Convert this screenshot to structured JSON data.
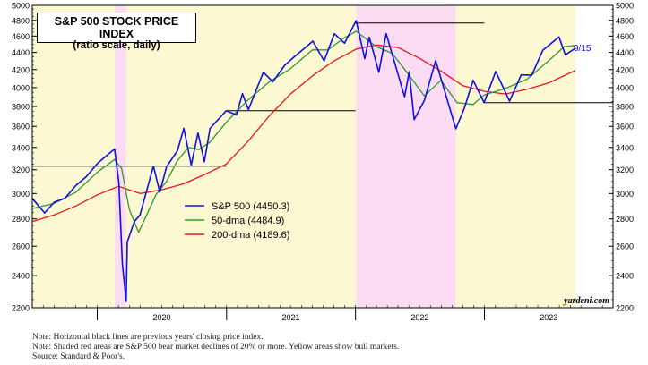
{
  "chart_data": {
    "type": "line",
    "title": "S&P 500 STOCK PRICE INDEX",
    "subtitle": "(ratio scale, daily)",
    "scale": "log",
    "ylim": [
      2200,
      5000
    ],
    "y_ticks": [
      2200,
      2400,
      2600,
      2800,
      3000,
      3200,
      3400,
      3600,
      3800,
      4000,
      4200,
      4400,
      4600,
      4800,
      5000
    ],
    "x_ticks": [
      "2020",
      "2021",
      "2022",
      "2023"
    ],
    "xlim": [
      "2019-07-01",
      "2023-12-31"
    ],
    "latest_label": "9/15",
    "watermark": "yardeni.com",
    "legend": {
      "placement": "center-left",
      "entries": [
        {
          "label": "S&P 500 (4450.3)",
          "color": "#1010e0"
        },
        {
          "label": "50-dma (4484.9)",
          "color": "#2f9a2f"
        },
        {
          "label": "200-dma (4189.6)",
          "color": "#e8151b"
        }
      ]
    },
    "shaded_periods": [
      {
        "kind": "bull",
        "start": "2019-07-01",
        "end": "2020-02-19",
        "color": "#fbf8d2"
      },
      {
        "kind": "bear",
        "start": "2020-02-19",
        "end": "2020-03-23",
        "color": "#fbdcf3"
      },
      {
        "kind": "bull",
        "start": "2020-03-23",
        "end": "2022-01-03",
        "color": "#fbf8d2"
      },
      {
        "kind": "bear",
        "start": "2022-01-03",
        "end": "2022-10-12",
        "color": "#fbdcf3"
      },
      {
        "kind": "bull",
        "start": "2022-10-12",
        "end": "2023-09-15",
        "color": "#fbf8d2"
      }
    ],
    "reference_lines": [
      {
        "label": "2019 close",
        "value": 3231,
        "start": "2019-07-01",
        "end": "2021-01-01"
      },
      {
        "label": "2020 close",
        "value": 3756,
        "start": "2021-01-01",
        "end": "2022-01-01"
      },
      {
        "label": "2021 close",
        "value": 4766,
        "start": "2022-01-01",
        "end": "2023-01-01"
      },
      {
        "label": "2022 close",
        "value": 3839,
        "start": "2023-01-01",
        "end": "2023-12-31"
      }
    ],
    "series": [
      {
        "name": "S&P 500 (4450.3)",
        "color": "#1010e0",
        "points": [
          [
            "2019-07-01",
            2960
          ],
          [
            "2019-08-05",
            2845
          ],
          [
            "2019-09-01",
            2930
          ],
          [
            "2019-10-01",
            2960
          ],
          [
            "2019-11-01",
            3065
          ],
          [
            "2019-12-01",
            3140
          ],
          [
            "2020-01-02",
            3257
          ],
          [
            "2020-02-19",
            3386
          ],
          [
            "2020-03-02",
            3090
          ],
          [
            "2020-03-12",
            2480
          ],
          [
            "2020-03-16",
            2386
          ],
          [
            "2020-03-23",
            2237
          ],
          [
            "2020-03-26",
            2630
          ],
          [
            "2020-04-15",
            2780
          ],
          [
            "2020-05-01",
            2830
          ],
          [
            "2020-06-08",
            3232
          ],
          [
            "2020-06-26",
            3010
          ],
          [
            "2020-07-15",
            3225
          ],
          [
            "2020-08-15",
            3370
          ],
          [
            "2020-09-02",
            3580
          ],
          [
            "2020-09-23",
            3240
          ],
          [
            "2020-10-12",
            3535
          ],
          [
            "2020-10-30",
            3270
          ],
          [
            "2020-11-15",
            3580
          ],
          [
            "2020-12-31",
            3756
          ],
          [
            "2021-01-29",
            3714
          ],
          [
            "2021-02-15",
            3934
          ],
          [
            "2021-03-04",
            3768
          ],
          [
            "2021-04-15",
            4170
          ],
          [
            "2021-05-12",
            4063
          ],
          [
            "2021-06-15",
            4250
          ],
          [
            "2021-07-15",
            4360
          ],
          [
            "2021-08-15",
            4470
          ],
          [
            "2021-09-02",
            4537
          ],
          [
            "2021-10-04",
            4300
          ],
          [
            "2021-11-02",
            4630
          ],
          [
            "2021-12-01",
            4513
          ],
          [
            "2022-01-03",
            4796
          ],
          [
            "2022-01-27",
            4326
          ],
          [
            "2022-02-09",
            4587
          ],
          [
            "2022-03-08",
            4170
          ],
          [
            "2022-03-29",
            4631
          ],
          [
            "2022-05-20",
            3901
          ],
          [
            "2022-06-02",
            4176
          ],
          [
            "2022-06-16",
            3666
          ],
          [
            "2022-07-15",
            3863
          ],
          [
            "2022-08-16",
            4305
          ],
          [
            "2022-09-15",
            3901
          ],
          [
            "2022-10-12",
            3577
          ],
          [
            "2022-11-04",
            3771
          ],
          [
            "2022-11-30",
            4080
          ],
          [
            "2022-12-31",
            3839
          ],
          [
            "2023-02-02",
            4179
          ],
          [
            "2023-03-13",
            3855
          ],
          [
            "2023-04-15",
            4140
          ],
          [
            "2023-05-15",
            4136
          ],
          [
            "2023-06-15",
            4425
          ],
          [
            "2023-07-31",
            4589
          ],
          [
            "2023-08-18",
            4370
          ],
          [
            "2023-09-15",
            4450
          ]
        ]
      },
      {
        "name": "50-dma (4484.9)",
        "color": "#2f9a2f",
        "points": [
          [
            "2019-07-01",
            2880
          ],
          [
            "2019-09-01",
            2920
          ],
          [
            "2019-11-01",
            3010
          ],
          [
            "2020-01-02",
            3180
          ],
          [
            "2020-02-19",
            3290
          ],
          [
            "2020-03-10",
            3210
          ],
          [
            "2020-04-01",
            2870
          ],
          [
            "2020-04-27",
            2700
          ],
          [
            "2020-05-20",
            2830
          ],
          [
            "2020-06-15",
            2990
          ],
          [
            "2020-07-15",
            3100
          ],
          [
            "2020-08-15",
            3280
          ],
          [
            "2020-09-15",
            3400
          ],
          [
            "2020-10-15",
            3380
          ],
          [
            "2020-11-15",
            3450
          ],
          [
            "2020-12-31",
            3640
          ],
          [
            "2021-03-01",
            3860
          ],
          [
            "2021-05-01",
            4060
          ],
          [
            "2021-07-01",
            4210
          ],
          [
            "2021-09-01",
            4430
          ],
          [
            "2021-10-15",
            4430
          ],
          [
            "2021-12-01",
            4580
          ],
          [
            "2022-01-03",
            4660
          ],
          [
            "2022-03-01",
            4470
          ],
          [
            "2022-04-15",
            4390
          ],
          [
            "2022-06-01",
            4140
          ],
          [
            "2022-07-15",
            3910
          ],
          [
            "2022-08-31",
            4080
          ],
          [
            "2022-10-15",
            3840
          ],
          [
            "2022-11-30",
            3820
          ],
          [
            "2022-12-31",
            3920
          ],
          [
            "2023-03-01",
            3990
          ],
          [
            "2023-05-01",
            4090
          ],
          [
            "2023-07-01",
            4300
          ],
          [
            "2023-08-15",
            4470
          ],
          [
            "2023-09-15",
            4485
          ]
        ]
      },
      {
        "name": "200-dma (4189.6)",
        "color": "#e8151b",
        "points": [
          [
            "2019-07-01",
            2780
          ],
          [
            "2019-09-01",
            2830
          ],
          [
            "2019-11-01",
            2900
          ],
          [
            "2020-01-02",
            2990
          ],
          [
            "2020-03-01",
            3060
          ],
          [
            "2020-05-01",
            3000
          ],
          [
            "2020-07-01",
            3030
          ],
          [
            "2020-09-01",
            3080
          ],
          [
            "2020-11-01",
            3160
          ],
          [
            "2020-12-31",
            3250
          ],
          [
            "2021-03-01",
            3450
          ],
          [
            "2021-05-01",
            3700
          ],
          [
            "2021-07-01",
            3930
          ],
          [
            "2021-09-01",
            4130
          ],
          [
            "2021-11-01",
            4300
          ],
          [
            "2022-01-03",
            4440
          ],
          [
            "2022-03-01",
            4490
          ],
          [
            "2022-05-01",
            4460
          ],
          [
            "2022-07-01",
            4330
          ],
          [
            "2022-09-01",
            4180
          ],
          [
            "2022-11-01",
            4020
          ],
          [
            "2022-12-31",
            3960
          ],
          [
            "2023-03-01",
            3930
          ],
          [
            "2023-05-01",
            3980
          ],
          [
            "2023-07-01",
            4050
          ],
          [
            "2023-09-15",
            4190
          ]
        ]
      }
    ]
  },
  "notes": {
    "line1": "Note: Horizontal black lines are previous years' closing price index.",
    "line2": "Note: Shaded red areas are S&P 500 bear market declines of 20% or more. Yellow areas show bull markets.",
    "line3": "Source: Standard & Poor's."
  }
}
